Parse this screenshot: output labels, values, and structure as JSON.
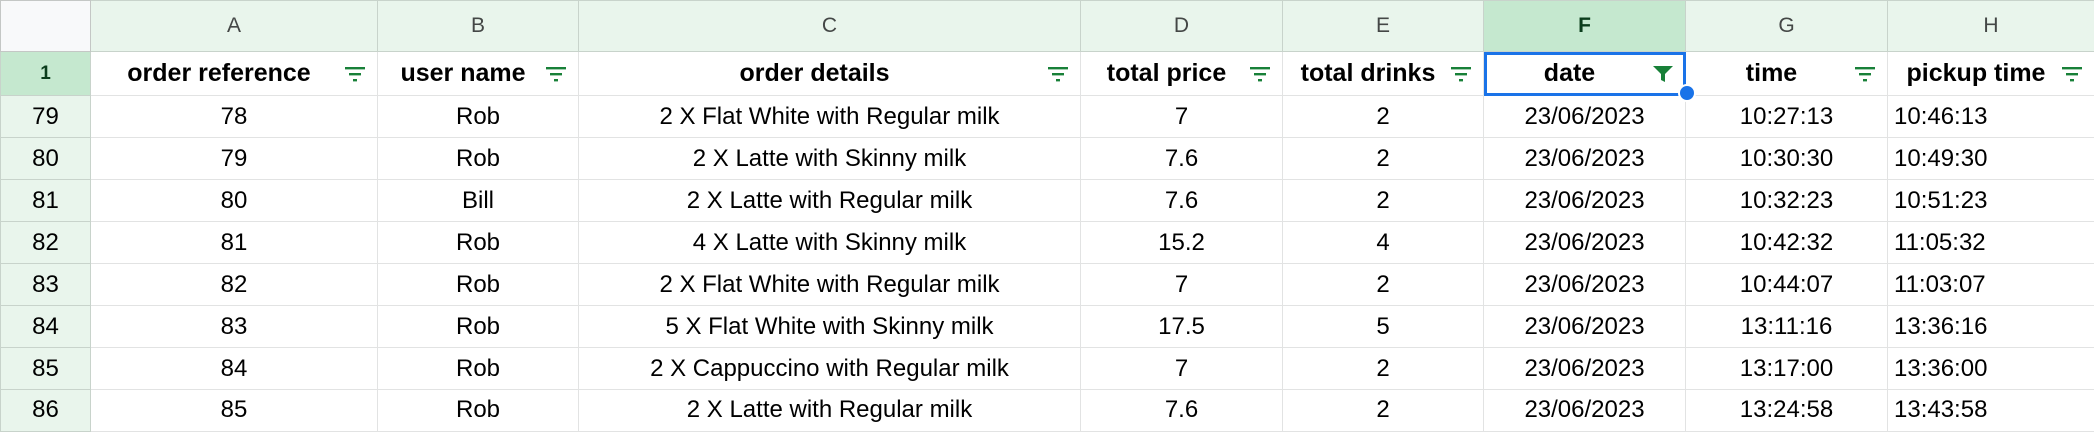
{
  "columns": [
    "A",
    "B",
    "C",
    "D",
    "E",
    "F",
    "G",
    "H"
  ],
  "header_row_number": "1",
  "headers": [
    "order reference",
    "user name",
    "order details",
    "total price",
    "total drinks",
    "date",
    "time",
    "pickup time"
  ],
  "rows": [
    {
      "num": "79",
      "cells": [
        "78",
        "Rob",
        "2 X Flat White with Regular milk",
        "7",
        "2",
        "23/06/2023",
        "10:27:13",
        "10:46:13"
      ]
    },
    {
      "num": "80",
      "cells": [
        "79",
        "Rob",
        "2 X Latte with Skinny milk",
        "7.6",
        "2",
        "23/06/2023",
        "10:30:30",
        "10:49:30"
      ]
    },
    {
      "num": "81",
      "cells": [
        "80",
        "Bill",
        "2 X Latte with Regular milk",
        "7.6",
        "2",
        "23/06/2023",
        "10:32:23",
        "10:51:23"
      ]
    },
    {
      "num": "82",
      "cells": [
        "81",
        "Rob",
        "4 X Latte with Skinny milk",
        "15.2",
        "4",
        "23/06/2023",
        "10:42:32",
        "11:05:32"
      ]
    },
    {
      "num": "83",
      "cells": [
        "82",
        "Rob",
        "2 X Flat White with Regular milk",
        "7",
        "2",
        "23/06/2023",
        "10:44:07",
        "11:03:07"
      ]
    },
    {
      "num": "84",
      "cells": [
        "83",
        "Rob",
        "5 X Flat White with Skinny milk",
        "17.5",
        "5",
        "23/06/2023",
        "13:11:16",
        "13:36:16"
      ]
    },
    {
      "num": "85",
      "cells": [
        "84",
        "Rob",
        "2 X Cappuccino with Regular milk",
        "7",
        "2",
        "23/06/2023",
        "13:17:00",
        "13:36:00"
      ]
    },
    {
      "num": "86",
      "cells": [
        "85",
        "Rob",
        "2 X Latte with Regular milk",
        "7.6",
        "2",
        "23/06/2023",
        "13:24:58",
        "13:43:58"
      ]
    }
  ],
  "selected_column": "F",
  "active_filter_column": "F",
  "icons": {
    "filter": "filter-icon",
    "active_filter": "filter-active-icon"
  },
  "colors": {
    "filter_icon": "#188038",
    "active_filter_icon": "#188038",
    "selection_outline": "#1a73e8",
    "header_bg": "#e9f5ec",
    "selected_header_bg": "#c5e8cf"
  }
}
